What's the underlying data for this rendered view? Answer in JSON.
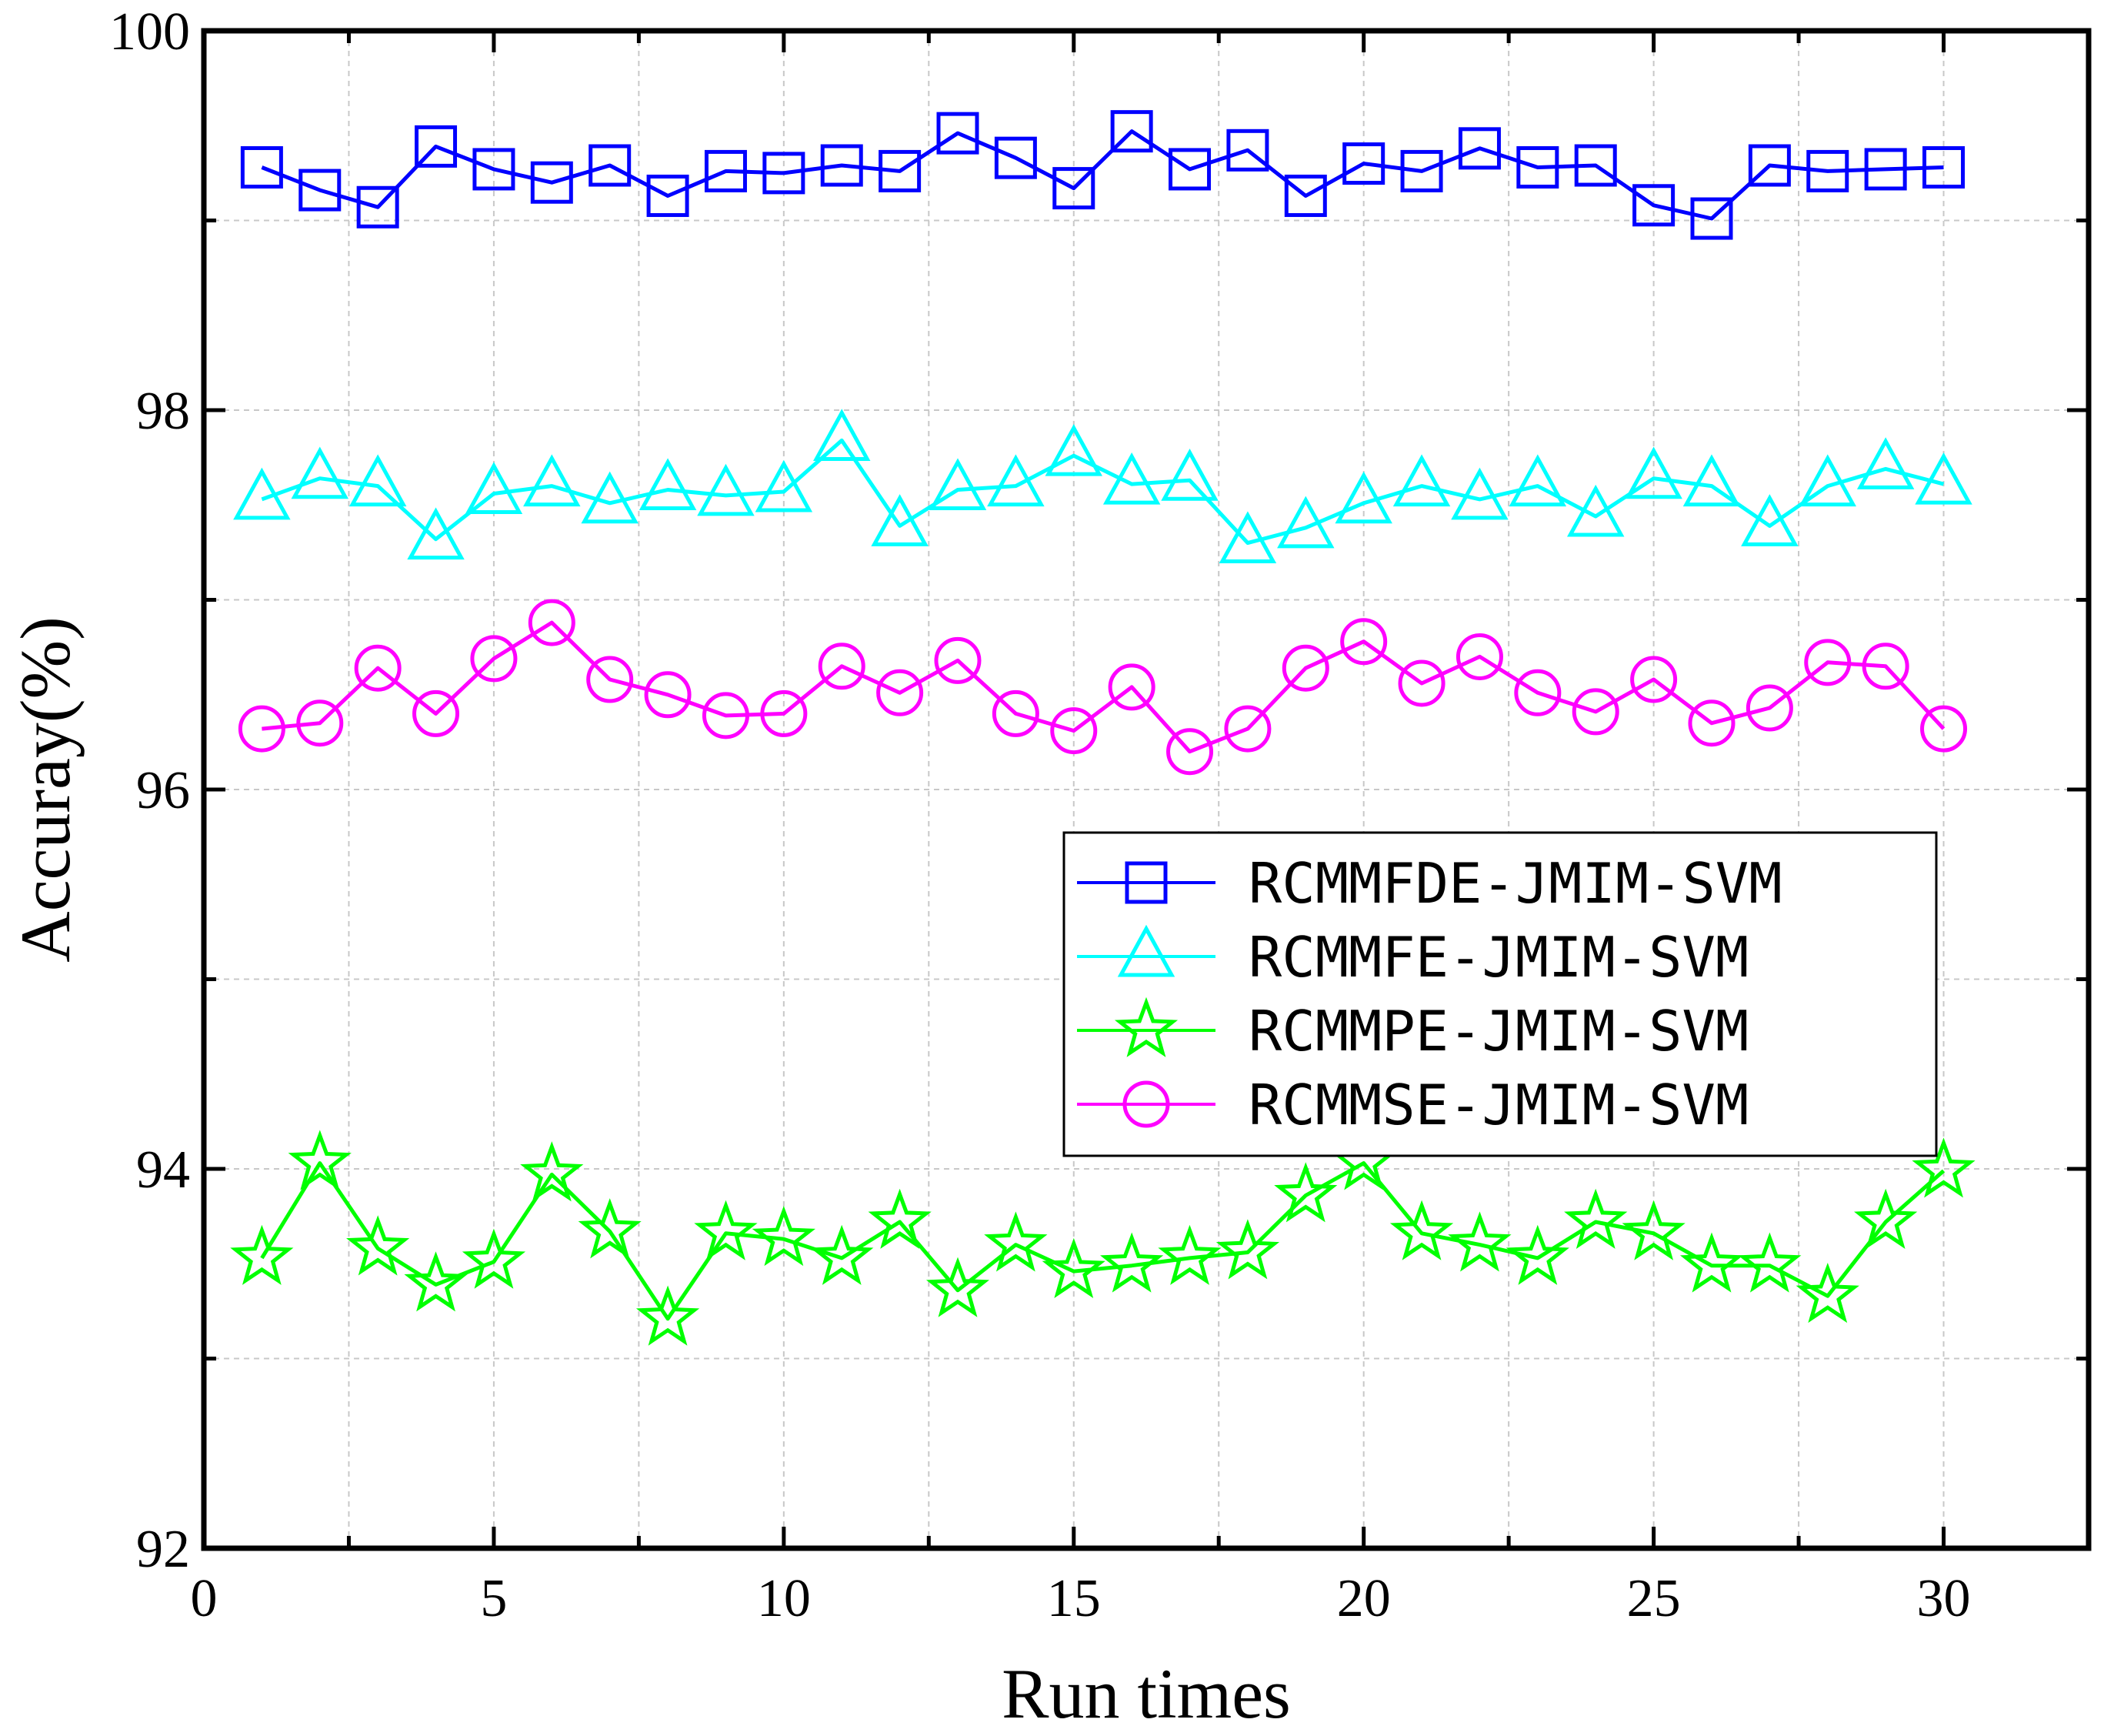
{
  "chart_data": {
    "type": "line",
    "xlabel": "Run times",
    "ylabel": "Accuray(%)",
    "xlim": [
      0,
      32.5
    ],
    "ylim": [
      92,
      100
    ],
    "xticks": [
      0,
      5,
      10,
      15,
      20,
      25,
      30
    ],
    "yticks": [
      92,
      94,
      96,
      98,
      100
    ],
    "xtick_labels": [
      "0",
      "5",
      "10",
      "15",
      "20",
      "25",
      "30"
    ],
    "ytick_labels": [
      "92",
      "94",
      "96",
      "98",
      "100"
    ],
    "grid": true,
    "legend_position": "center-right",
    "x": [
      1,
      2,
      3,
      4,
      5,
      6,
      7,
      8,
      9,
      10,
      11,
      12,
      13,
      14,
      15,
      16,
      17,
      18,
      19,
      20,
      21,
      22,
      23,
      24,
      25,
      26,
      27,
      28,
      29,
      30
    ],
    "series": [
      {
        "name": "RCMMFDE-JMIM-SVM",
        "color": "#0000ff",
        "marker": "square",
        "values": [
          99.28,
          99.16,
          99.07,
          99.39,
          99.27,
          99.2,
          99.29,
          99.13,
          99.26,
          99.25,
          99.29,
          99.26,
          99.46,
          99.33,
          99.17,
          99.47,
          99.27,
          99.37,
          99.13,
          99.3,
          99.26,
          99.38,
          99.28,
          99.29,
          99.08,
          99.01,
          99.29,
          99.26,
          99.27,
          99.28
        ]
      },
      {
        "name": "RCMMFE-JMIM-SVM",
        "color": "#00ffff",
        "marker": "triangle",
        "values": [
          97.53,
          97.64,
          97.6,
          97.32,
          97.56,
          97.6,
          97.51,
          97.58,
          97.55,
          97.57,
          97.84,
          97.39,
          97.58,
          97.6,
          97.76,
          97.61,
          97.63,
          97.3,
          97.38,
          97.51,
          97.6,
          97.53,
          97.6,
          97.44,
          97.64,
          97.6,
          97.39,
          97.6,
          97.69,
          97.61
        ]
      },
      {
        "name": "RCMMPE-JMIM-SVM",
        "color": "#00ff00",
        "marker": "star",
        "values": [
          93.53,
          94.03,
          93.58,
          93.39,
          93.51,
          93.97,
          93.67,
          93.21,
          93.66,
          93.63,
          93.53,
          93.72,
          93.36,
          93.6,
          93.46,
          93.49,
          93.53,
          93.56,
          93.86,
          94.03,
          93.66,
          93.6,
          93.53,
          93.72,
          93.66,
          93.49,
          93.49,
          93.33,
          93.72,
          93.99
        ]
      },
      {
        "name": "RCMMSE-JMIM-SVM",
        "color": "#ff00ff",
        "marker": "circle",
        "values": [
          96.32,
          96.35,
          96.64,
          96.4,
          96.69,
          96.88,
          96.58,
          96.5,
          96.39,
          96.4,
          96.65,
          96.51,
          96.68,
          96.4,
          96.31,
          96.54,
          96.2,
          96.32,
          96.64,
          96.78,
          96.56,
          96.7,
          96.51,
          96.41,
          96.58,
          96.35,
          96.43,
          96.67,
          96.65,
          96.32
        ]
      }
    ]
  }
}
